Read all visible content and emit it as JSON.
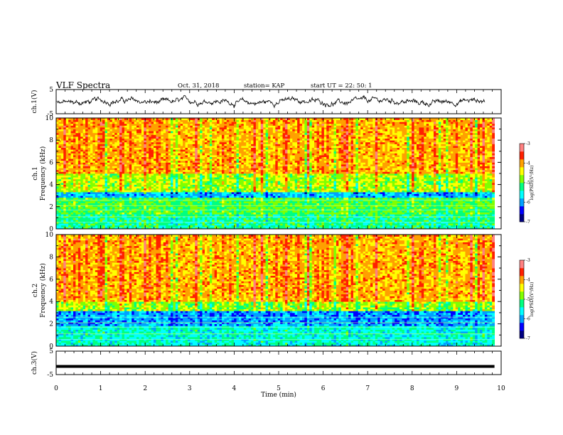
{
  "header": {
    "title": "VLF Spectra",
    "date": "Oct. 31, 2018",
    "station": "station= KAP",
    "start": "start UT = 22: 50: 1"
  },
  "colorscale": {
    "label": "log(PSD)(V²/Hz)",
    "min": -7,
    "max": -3,
    "ticks": [
      "-3",
      "-4",
      "-5",
      "-6",
      "-7"
    ],
    "colors": [
      "#000080",
      "#0000ff",
      "#00a0ff",
      "#00ffff",
      "#00ff80",
      "#80ff00",
      "#ffff00",
      "#ffa000",
      "#ff2000",
      "#ff8080",
      "#ffffff"
    ]
  },
  "chart_data": [
    {
      "type": "line",
      "name": "ch.1(V)",
      "ylabel": "ch.1(V)",
      "ylim": [
        -5,
        5
      ],
      "yticks": [
        "5",
        "-5"
      ],
      "xlim": [
        0,
        10
      ],
      "description_values": "noisy waveform oscillating around ~0 V, amplitude roughly ±2 V",
      "mean": 0,
      "amplitude": 2.2
    },
    {
      "type": "heatmap",
      "name": "ch.1",
      "ylabel": "ch.1\nFrequency (kHz)",
      "ylim": [
        0,
        10
      ],
      "yticks": [
        "0",
        "2",
        "4",
        "6",
        "8",
        "10"
      ],
      "xlim": [
        0,
        9.85
      ],
      "bands": [
        {
          "from_khz": 0,
          "to_khz": 1.3,
          "level": -5.3
        },
        {
          "from_khz": 1.3,
          "to_khz": 2.9,
          "level": -5.0
        },
        {
          "from_khz": 2.9,
          "to_khz": 3.4,
          "level": -5.9
        },
        {
          "from_khz": 3.4,
          "to_khz": 5.0,
          "level": -4.7
        },
        {
          "from_khz": 5.0,
          "to_khz": 10,
          "level": -4.1
        }
      ]
    },
    {
      "type": "heatmap",
      "name": "ch.2",
      "ylabel": "ch.2\nFrequency (kHz)",
      "ylim": [
        0,
        10
      ],
      "yticks": [
        "0",
        "2",
        "4",
        "6",
        "8",
        "10"
      ],
      "xlim": [
        0,
        9.85
      ],
      "bands": [
        {
          "from_khz": 0,
          "to_khz": 1.8,
          "level": -5.5
        },
        {
          "from_khz": 1.8,
          "to_khz": 3.1,
          "level": -6.0
        },
        {
          "from_khz": 3.1,
          "to_khz": 4.0,
          "level": -4.8
        },
        {
          "from_khz": 4.0,
          "to_khz": 10,
          "level": -4.1
        }
      ]
    },
    {
      "type": "line",
      "name": "ch.3(V)",
      "ylabel": "ch.3(V)",
      "ylim": [
        -5,
        5
      ],
      "yticks": [
        "5",
        "-5"
      ],
      "xlim": [
        0,
        10
      ],
      "x": [
        0,
        9.85
      ],
      "y": [
        -1.5,
        -1.5
      ]
    }
  ],
  "xaxis": {
    "label": "Time (min)",
    "ticks": [
      "0",
      "1",
      "2",
      "3",
      "4",
      "5",
      "6",
      "7",
      "8",
      "9",
      "10"
    ],
    "lim": [
      0,
      10
    ]
  }
}
